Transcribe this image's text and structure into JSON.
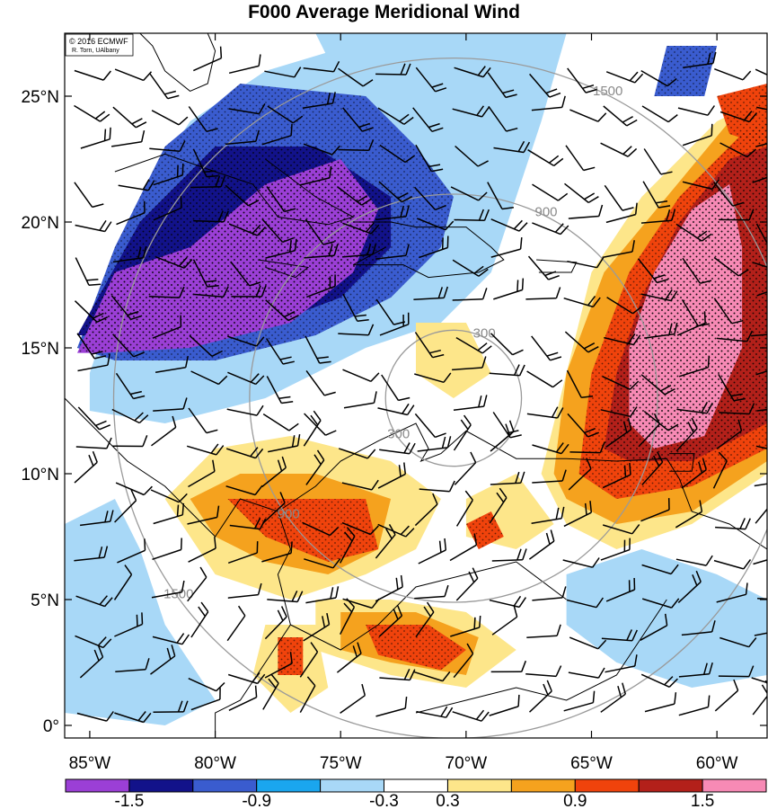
{
  "title": "F000 Average Meridional Wind",
  "credit": {
    "line1": "© 2016 ECMWF",
    "line2": "R. Torn, UAlbany"
  },
  "map": {
    "lon_range": [
      -86,
      -58
    ],
    "lat_range": [
      -0.5,
      27.5
    ],
    "lon_ticks": [
      {
        "value": -85,
        "label": "85°W"
      },
      {
        "value": -80,
        "label": "80°W"
      },
      {
        "value": -75,
        "label": "75°W"
      },
      {
        "value": -70,
        "label": "70°W"
      },
      {
        "value": -65,
        "label": "65°W"
      },
      {
        "value": -60,
        "label": "60°W"
      }
    ],
    "lat_ticks": [
      {
        "value": 0,
        "label": "0°"
      },
      {
        "value": 5,
        "label": "5°N"
      },
      {
        "value": 10,
        "label": "10°N"
      },
      {
        "value": 15,
        "label": "15°N"
      },
      {
        "value": 20,
        "label": "20°N"
      },
      {
        "value": 25,
        "label": "25°N"
      }
    ],
    "range_rings": {
      "center": {
        "lon": -70.5,
        "lat": 13.0
      },
      "rings": [
        {
          "value_km": 300,
          "label": "300"
        },
        {
          "value_km": 900,
          "label": "900"
        },
        {
          "value_km": 1500,
          "label": "1500"
        }
      ]
    }
  },
  "colorbar": {
    "levels": [
      -1.8,
      -1.5,
      -1.2,
      -0.9,
      -0.6,
      -0.3,
      0.3,
      0.6,
      0.9,
      1.2,
      1.5,
      1.8
    ],
    "colors": [
      "#9b3fd6",
      "#12128a",
      "#3a5ccf",
      "#1aa6ef",
      "#a8d8f7",
      "#ffffff",
      "#fde68a",
      "#f5a21e",
      "#f0430c",
      "#b3201a",
      "#f78ab5"
    ],
    "labels": [
      {
        "value": -1.5,
        "label": "-1.5"
      },
      {
        "value": -0.9,
        "label": "-0.9"
      },
      {
        "value": -0.3,
        "label": "-0.3"
      },
      {
        "value": 0.3,
        "label": "0.3"
      },
      {
        "value": 0.9,
        "label": "0.9"
      },
      {
        "value": 1.5,
        "label": "1.5"
      }
    ]
  },
  "field_regions": [
    {
      "value": -0.5,
      "pts": [
        [
          -85,
          14
        ],
        [
          -84,
          17
        ],
        [
          -83,
          21
        ],
        [
          -81,
          24
        ],
        [
          -78,
          26
        ],
        [
          -73,
          27.5
        ],
        [
          -66,
          27.5
        ],
        [
          -67,
          24
        ],
        [
          -68,
          21
        ],
        [
          -69,
          18
        ],
        [
          -71,
          16
        ],
        [
          -74,
          15
        ],
        [
          -78,
          13
        ],
        [
          -82,
          12
        ],
        [
          -85,
          12.5
        ]
      ]
    },
    {
      "value": -1.0,
      "pts": [
        [
          -85.5,
          15
        ],
        [
          -84,
          19
        ],
        [
          -82,
          23
        ],
        [
          -79,
          25.5
        ],
        [
          -74,
          25
        ],
        [
          -72,
          23
        ],
        [
          -70.5,
          21
        ],
        [
          -71,
          19
        ],
        [
          -73,
          17
        ],
        [
          -76,
          15.5
        ],
        [
          -80,
          14.5
        ],
        [
          -84,
          14.5
        ]
      ]
    },
    {
      "value": -1.35,
      "pts": [
        [
          -85.5,
          15.5
        ],
        [
          -83,
          20
        ],
        [
          -80,
          23
        ],
        [
          -76,
          23
        ],
        [
          -73,
          21
        ],
        [
          -73,
          19
        ],
        [
          -75,
          17
        ],
        [
          -79,
          15.5
        ],
        [
          -84,
          15.5
        ]
      ]
    },
    {
      "value": -1.65,
      "pts": [
        [
          -85.5,
          14.8
        ],
        [
          -84,
          18
        ],
        [
          -81,
          19
        ],
        [
          -78,
          21.5
        ],
        [
          -75,
          22.5
        ],
        [
          -73.5,
          20.5
        ],
        [
          -74.5,
          18
        ],
        [
          -77,
          16
        ],
        [
          -81,
          15
        ],
        [
          -84.5,
          14.8
        ]
      ]
    },
    {
      "value": -0.5,
      "pts": [
        [
          -76,
          27.5
        ],
        [
          -72,
          27.5
        ],
        [
          -72.5,
          26
        ],
        [
          -75,
          25.5
        ]
      ]
    },
    {
      "value": -1.0,
      "pts": [
        [
          -62,
          27
        ],
        [
          -60,
          27
        ],
        [
          -60.5,
          25
        ],
        [
          -62.5,
          25
        ]
      ]
    },
    {
      "value": -0.5,
      "pts": [
        [
          -86,
          8
        ],
        [
          -84,
          9
        ],
        [
          -83,
          7
        ],
        [
          -82,
          4
        ],
        [
          -80,
          1
        ],
        [
          -82,
          0
        ],
        [
          -86,
          0.5
        ]
      ]
    },
    {
      "value": -0.5,
      "pts": [
        [
          -66,
          6
        ],
        [
          -63,
          7
        ],
        [
          -60,
          6
        ],
        [
          -58,
          5
        ],
        [
          -58,
          2
        ],
        [
          -61,
          1.5
        ],
        [
          -64,
          2.5
        ],
        [
          -66,
          4
        ]
      ]
    },
    {
      "value": 0.4,
      "pts": [
        [
          -82,
          9
        ],
        [
          -80,
          11
        ],
        [
          -77,
          11.5
        ],
        [
          -73,
          10.5
        ],
        [
          -71,
          9
        ],
        [
          -72,
          7
        ],
        [
          -74,
          6
        ],
        [
          -77,
          5
        ],
        [
          -80,
          6
        ]
      ]
    },
    {
      "value": 0.7,
      "pts": [
        [
          -81,
          9
        ],
        [
          -79,
          10
        ],
        [
          -76,
          10
        ],
        [
          -73,
          9
        ],
        [
          -73.5,
          7
        ],
        [
          -75.5,
          6
        ],
        [
          -78,
          6.5
        ],
        [
          -80,
          7.5
        ]
      ]
    },
    {
      "value": 1.0,
      "pts": [
        [
          -79.5,
          9
        ],
        [
          -77,
          9
        ],
        [
          -74,
          9
        ],
        [
          -73.5,
          7
        ],
        [
          -75.5,
          6.5
        ],
        [
          -78,
          7.5
        ]
      ]
    },
    {
      "value": 0.4,
      "pts": [
        [
          -76,
          5
        ],
        [
          -73,
          5
        ],
        [
          -70,
          4.5
        ],
        [
          -68,
          3
        ],
        [
          -70,
          1.5
        ],
        [
          -73,
          2
        ],
        [
          -76,
          3
        ]
      ]
    },
    {
      "value": 0.7,
      "pts": [
        [
          -75,
          4.5
        ],
        [
          -72,
          4.5
        ],
        [
          -69.5,
          3.5
        ],
        [
          -70,
          2
        ],
        [
          -73,
          2.5
        ],
        [
          -75,
          3
        ]
      ]
    },
    {
      "value": 1.0,
      "pts": [
        [
          -74,
          4
        ],
        [
          -71.5,
          4
        ],
        [
          -70,
          3
        ],
        [
          -71,
          2.2
        ],
        [
          -73.5,
          2.8
        ]
      ]
    },
    {
      "value": 0.4,
      "pts": [
        [
          -67,
          10
        ],
        [
          -66,
          14
        ],
        [
          -65,
          18
        ],
        [
          -63,
          21
        ],
        [
          -60,
          24
        ],
        [
          -58,
          25
        ],
        [
          -58,
          10
        ],
        [
          -61,
          8
        ],
        [
          -64,
          7
        ],
        [
          -66,
          8
        ]
      ]
    },
    {
      "value": 0.7,
      "pts": [
        [
          -66.5,
          10
        ],
        [
          -66,
          14
        ],
        [
          -64.5,
          18
        ],
        [
          -62,
          21
        ],
        [
          -59.5,
          24
        ],
        [
          -58,
          24.5
        ],
        [
          -58,
          10.5
        ],
        [
          -61,
          8.5
        ],
        [
          -64,
          8
        ],
        [
          -66,
          9
        ]
      ]
    },
    {
      "value": 1.0,
      "pts": [
        [
          -65.5,
          10
        ],
        [
          -65,
          14
        ],
        [
          -63.5,
          18
        ],
        [
          -61.5,
          21
        ],
        [
          -59,
          23.5
        ],
        [
          -58,
          24
        ],
        [
          -58,
          11
        ],
        [
          -61,
          9.5
        ],
        [
          -64,
          9
        ]
      ]
    },
    {
      "value": 1.35,
      "pts": [
        [
          -64.5,
          11
        ],
        [
          -64,
          14
        ],
        [
          -63,
          17
        ],
        [
          -61.5,
          20
        ],
        [
          -59.5,
          22.5
        ],
        [
          -58,
          23
        ],
        [
          -58,
          12
        ],
        [
          -61,
          10.5
        ],
        [
          -63.5,
          10.5
        ]
      ]
    },
    {
      "value": 1.65,
      "pts": [
        [
          -63.5,
          12
        ],
        [
          -63.5,
          15
        ],
        [
          -62.5,
          18
        ],
        [
          -61,
          20.5
        ],
        [
          -59.5,
          21.5
        ],
        [
          -59,
          19
        ],
        [
          -59,
          15
        ],
        [
          -60.5,
          11.5
        ],
        [
          -62.5,
          11
        ]
      ]
    },
    {
      "value": 1.0,
      "pts": [
        [
          -60,
          25
        ],
        [
          -58,
          25.5
        ],
        [
          -58,
          23
        ],
        [
          -59.5,
          23.5
        ]
      ]
    },
    {
      "value": 0.4,
      "pts": [
        [
          -72,
          16
        ],
        [
          -70,
          16
        ],
        [
          -69,
          14
        ],
        [
          -70.5,
          13
        ],
        [
          -72,
          14
        ]
      ]
    },
    {
      "value": 0.4,
      "pts": [
        [
          -70,
          9
        ],
        [
          -68,
          10
        ],
        [
          -66.5,
          8
        ],
        [
          -68,
          7
        ],
        [
          -70,
          7.5
        ]
      ]
    },
    {
      "value": 1.0,
      "pts": [
        [
          -70,
          8
        ],
        [
          -69,
          8.5
        ],
        [
          -68.5,
          7.5
        ],
        [
          -69.5,
          7
        ]
      ]
    },
    {
      "value": 0.4,
      "pts": [
        [
          -78,
          4
        ],
        [
          -76,
          4
        ],
        [
          -75.5,
          1.5
        ],
        [
          -77,
          0.5
        ],
        [
          -78.5,
          2
        ]
      ]
    },
    {
      "value": 1.0,
      "pts": [
        [
          -77.5,
          3.5
        ],
        [
          -76.5,
          3.5
        ],
        [
          -76.5,
          2
        ],
        [
          -77.5,
          2
        ]
      ]
    }
  ]
}
